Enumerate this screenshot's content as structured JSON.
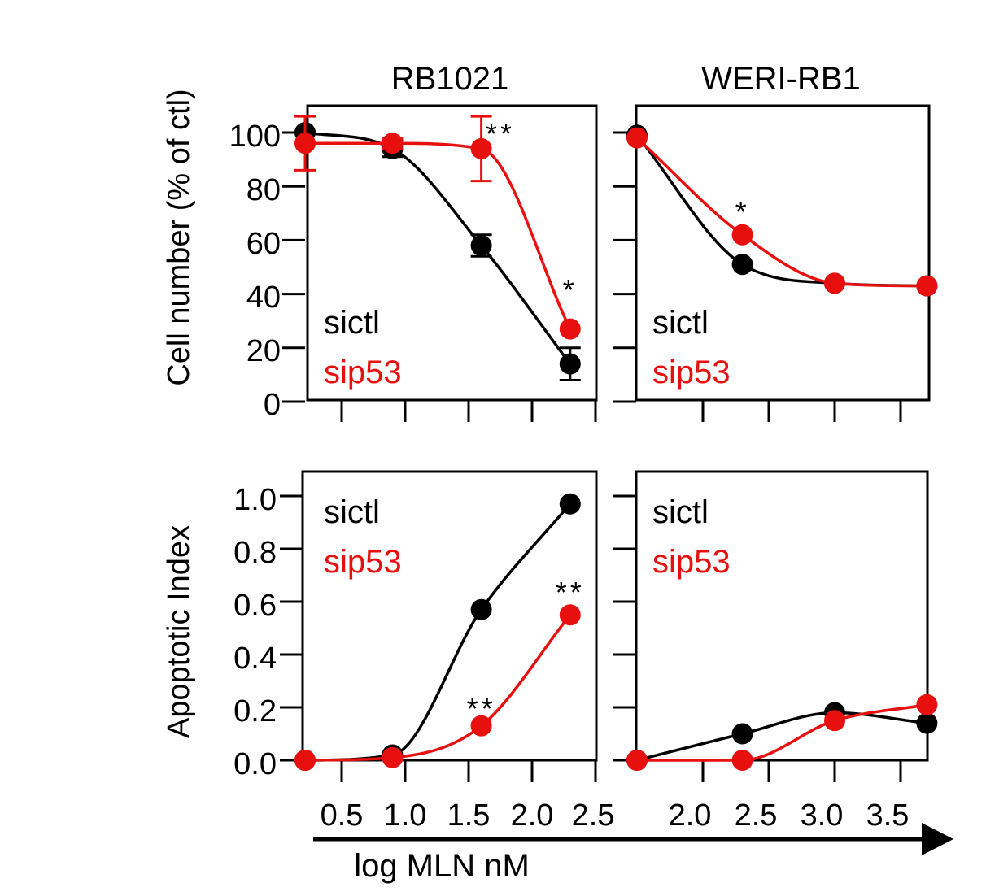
{
  "colors": {
    "sictl": "#000000",
    "sip53": "#e8100e"
  },
  "y_axis_titles": {
    "top": "Cell number  (% of ctl)",
    "bottom": "Apoptotic Index"
  },
  "x_axis_title": "log MLN nM",
  "x_tick_labels": {
    "left": [
      "0.5",
      "1.0",
      "1.5",
      "2.0",
      "2.5"
    ],
    "right": [
      "2.0",
      "2.5",
      "3.0",
      "3.5"
    ]
  },
  "panel_titles": {
    "left": "RB1021",
    "right": "WERI-RB1"
  },
  "chart_data": [
    {
      "type": "line",
      "title": "RB1021",
      "ylabel": "Cell number  (% of ctl)",
      "ylim": [
        0,
        100
      ],
      "yticks": [
        "100",
        "80",
        "60",
        "40",
        "20",
        "0"
      ],
      "xlim": [
        0.0,
        2.5
      ],
      "legend": [
        "sictl",
        "sip53"
      ],
      "legend_position": "bottom-left",
      "series": [
        {
          "name": "sictl",
          "points": [
            [
              0.0,
              100
            ],
            [
              0.9,
              94
            ],
            [
              1.6,
              58
            ],
            [
              2.3,
              14
            ]
          ],
          "errors": [
            0,
            3,
            4,
            6
          ]
        },
        {
          "name": "sip53",
          "points": [
            [
              0.0,
              96
            ],
            [
              0.9,
              96
            ],
            [
              1.6,
              94
            ],
            [
              2.3,
              27
            ]
          ],
          "errors": [
            10,
            2,
            12,
            0
          ]
        }
      ],
      "annotations": [
        {
          "text": "**",
          "x": 1.75,
          "y": 100
        },
        {
          "text": "*",
          "x": 2.3,
          "y": 42
        }
      ]
    },
    {
      "type": "line",
      "title": "WERI-RB1",
      "ylim": [
        0,
        100
      ],
      "xlim": [
        1.5,
        3.7
      ],
      "legend": [
        "sictl",
        "sip53"
      ],
      "legend_position": "bottom-left",
      "series": [
        {
          "name": "sictl",
          "points": [
            [
              1.5,
              99
            ],
            [
              2.3,
              51
            ],
            [
              3.0,
              44
            ],
            [
              3.7,
              43
            ]
          ]
        },
        {
          "name": "sip53",
          "points": [
            [
              1.5,
              98
            ],
            [
              2.3,
              62
            ],
            [
              3.0,
              44
            ],
            [
              3.7,
              43
            ]
          ]
        }
      ],
      "annotations": [
        {
          "text": "*",
          "x": 2.3,
          "y": 71
        }
      ]
    },
    {
      "type": "line",
      "ylabel": "Apoptotic Index",
      "ylim": [
        0,
        1.0
      ],
      "yticks": [
        "1.0",
        "0.8",
        "0.6",
        "0.4",
        "0.2",
        "0.0"
      ],
      "xlim": [
        0.0,
        2.5
      ],
      "xlabel": "log MLN nM",
      "legend": [
        "sictl",
        "sip53"
      ],
      "legend_position": "top-left",
      "series": [
        {
          "name": "sictl",
          "points": [
            [
              0.0,
              0.0
            ],
            [
              0.9,
              0.02
            ],
            [
              1.6,
              0.57
            ],
            [
              2.3,
              0.97
            ]
          ]
        },
        {
          "name": "sip53",
          "points": [
            [
              0.0,
              0.0
            ],
            [
              0.9,
              0.01
            ],
            [
              1.6,
              0.13
            ],
            [
              2.3,
              0.55
            ]
          ]
        }
      ],
      "annotations": [
        {
          "text": "**",
          "x": 2.3,
          "y": 0.64
        },
        {
          "text": "**",
          "x": 1.6,
          "y": 0.2
        }
      ]
    },
    {
      "type": "line",
      "ylim": [
        0,
        1.0
      ],
      "xlim": [
        1.5,
        3.7
      ],
      "legend": [
        "sictl",
        "sip53"
      ],
      "legend_position": "top-left",
      "series": [
        {
          "name": "sictl",
          "points": [
            [
              1.5,
              0.0
            ],
            [
              2.3,
              0.1
            ],
            [
              3.0,
              0.18
            ],
            [
              3.7,
              0.14
            ]
          ]
        },
        {
          "name": "sip53",
          "points": [
            [
              1.5,
              0.0
            ],
            [
              2.3,
              0.0
            ],
            [
              3.0,
              0.15
            ],
            [
              3.7,
              0.21
            ]
          ]
        }
      ]
    }
  ]
}
